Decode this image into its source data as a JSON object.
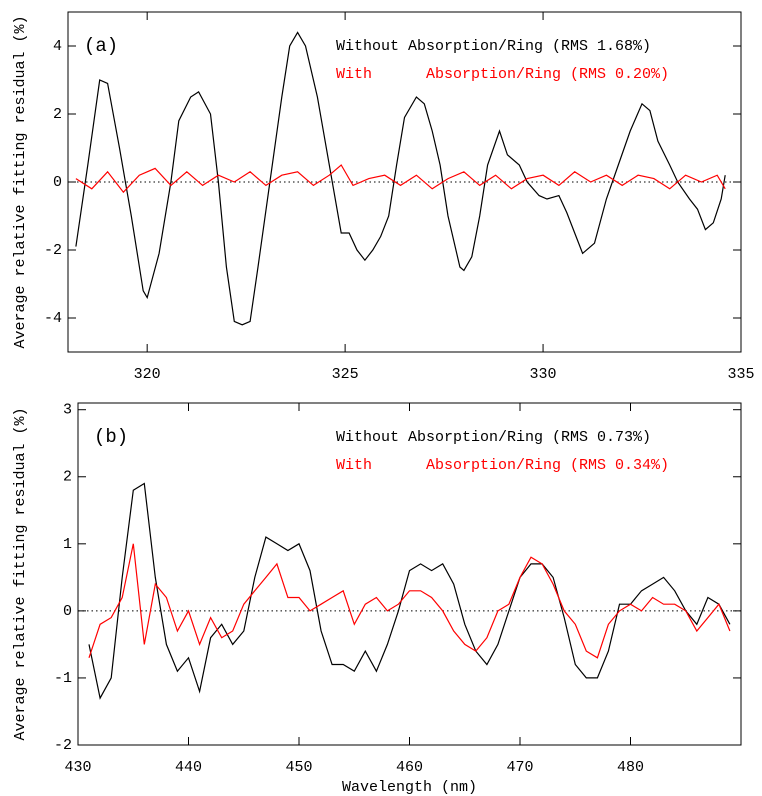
{
  "chart_data": [
    {
      "type": "line",
      "annotation": "(a)",
      "ylabel": "Average relative fitting residual (%)",
      "xlim": [
        318,
        335
      ],
      "xticks": [
        320,
        325,
        330,
        335
      ],
      "ylim": [
        -5,
        5
      ],
      "yticks": [
        -4,
        -2,
        0,
        2,
        4
      ],
      "series": [
        {
          "name": "Without Absorption/Ring (RMS 1.68%)",
          "color": "#000000",
          "x": [
            318.2,
            318.5,
            318.8,
            319.0,
            319.3,
            319.6,
            319.9,
            320.0,
            320.3,
            320.6,
            320.8,
            321.1,
            321.3,
            321.6,
            321.8,
            322.0,
            322.2,
            322.4,
            322.6,
            322.8,
            323.1,
            323.4,
            323.6,
            323.8,
            324.0,
            324.3,
            324.6,
            324.9,
            325.1,
            325.3,
            325.5,
            325.7,
            325.9,
            326.1,
            326.3,
            326.5,
            326.8,
            327.0,
            327.2,
            327.4,
            327.6,
            327.9,
            328.0,
            328.2,
            328.4,
            328.6,
            328.9,
            329.1,
            329.4,
            329.6,
            329.9,
            330.1,
            330.4,
            330.6,
            330.8,
            331.0,
            331.3,
            331.6,
            331.9,
            332.2,
            332.5,
            332.7,
            332.9,
            333.2,
            333.4,
            333.7,
            333.9,
            334.1,
            334.3,
            334.5,
            334.6
          ],
          "values": [
            -1.9,
            0.5,
            3.0,
            2.9,
            1.0,
            -1.0,
            -3.2,
            -3.4,
            -2.1,
            0,
            1.8,
            2.5,
            2.65,
            2.0,
            0,
            -2.5,
            -4.1,
            -4.2,
            -4.1,
            -2.5,
            0,
            2.5,
            4.0,
            4.4,
            4.0,
            2.5,
            0.5,
            -1.5,
            -1.5,
            -2.0,
            -2.3,
            -2.0,
            -1.6,
            -1.0,
            0.5,
            1.9,
            2.5,
            2.3,
            1.5,
            0.5,
            -1.0,
            -2.5,
            -2.6,
            -2.2,
            -1.0,
            0.5,
            1.5,
            0.8,
            0.5,
            0,
            -0.4,
            -0.5,
            -0.4,
            -0.9,
            -1.5,
            -2.1,
            -1.8,
            -0.5,
            0.5,
            1.5,
            2.3,
            2.1,
            1.2,
            0.5,
            0,
            -0.5,
            -0.8,
            -1.4,
            -1.2,
            -0.5,
            0.2
          ]
        },
        {
          "name": "With      Absorption/Ring (RMS 0.20%)",
          "color": "#ff0000",
          "x": [
            318.2,
            318.6,
            319.0,
            319.4,
            319.8,
            320.2,
            320.6,
            321.0,
            321.4,
            321.8,
            322.2,
            322.6,
            323.0,
            323.4,
            323.8,
            324.2,
            324.6,
            324.9,
            325.2,
            325.6,
            326.0,
            326.4,
            326.8,
            327.2,
            327.6,
            328.0,
            328.4,
            328.8,
            329.2,
            329.6,
            330.0,
            330.4,
            330.8,
            331.2,
            331.6,
            332.0,
            332.4,
            332.8,
            333.2,
            333.6,
            334.0,
            334.4,
            334.6
          ],
          "values": [
            0.1,
            -0.2,
            0.3,
            -0.3,
            0.2,
            0.4,
            -0.1,
            0.3,
            -0.1,
            0.2,
            0,
            0.3,
            -0.1,
            0.2,
            0.3,
            -0.1,
            0.2,
            0.5,
            -0.1,
            0.1,
            0.2,
            -0.1,
            0.2,
            -0.2,
            0.1,
            0.3,
            -0.1,
            0.2,
            -0.2,
            0.1,
            0.2,
            -0.1,
            0.3,
            0,
            0.2,
            -0.1,
            0.2,
            0.1,
            -0.2,
            0.2,
            0,
            0.2,
            -0.2
          ]
        }
      ]
    },
    {
      "type": "line",
      "annotation": "(b)",
      "ylabel": "Average relative fitting residual (%)",
      "xlabel": "Wavelength (nm)",
      "xlim": [
        430,
        490
      ],
      "xticks": [
        430,
        440,
        450,
        460,
        470,
        480
      ],
      "ylim": [
        -2,
        3.1
      ],
      "yticks": [
        -2,
        -1,
        0,
        1,
        2,
        3
      ],
      "series": [
        {
          "name": "Without Absorption/Ring (RMS 0.73%)",
          "color": "#000000",
          "x": [
            431,
            432,
            433,
            434,
            435,
            436,
            437,
            438,
            439,
            440,
            441,
            442,
            443,
            444,
            445,
            446,
            447,
            448,
            449,
            450,
            451,
            452,
            453,
            454,
            455,
            456,
            457,
            458,
            459,
            460,
            461,
            462,
            463,
            464,
            465,
            466,
            467,
            468,
            469,
            470,
            471,
            472,
            473,
            474,
            475,
            476,
            477,
            478,
            479,
            480,
            481,
            482,
            483,
            484,
            485,
            486,
            487,
            488,
            489
          ],
          "values": [
            -0.5,
            -1.3,
            -1.0,
            0.5,
            1.8,
            1.9,
            0.5,
            -0.5,
            -0.9,
            -0.7,
            -1.2,
            -0.4,
            -0.2,
            -0.5,
            -0.3,
            0.5,
            1.1,
            1.0,
            0.9,
            1.0,
            0.6,
            -0.3,
            -0.8,
            -0.8,
            -0.9,
            -0.6,
            -0.9,
            -0.5,
            0,
            0.6,
            0.7,
            0.6,
            0.7,
            0.4,
            -0.2,
            -0.6,
            -0.8,
            -0.5,
            0,
            0.5,
            0.7,
            0.7,
            0.5,
            -0.1,
            -0.8,
            -1.0,
            -1.0,
            -0.6,
            0.1,
            0.1,
            0.3,
            0.4,
            0.5,
            0.3,
            0,
            -0.2,
            0.2,
            0.1,
            -0.2
          ]
        },
        {
          "name": "With      Absorption/Ring (RMS 0.34%)",
          "color": "#ff0000",
          "x": [
            431,
            432,
            433,
            434,
            435,
            436,
            437,
            438,
            439,
            440,
            441,
            442,
            443,
            444,
            445,
            446,
            447,
            448,
            449,
            450,
            451,
            452,
            453,
            454,
            455,
            456,
            457,
            458,
            459,
            460,
            461,
            462,
            463,
            464,
            465,
            466,
            467,
            468,
            469,
            470,
            471,
            472,
            473,
            474,
            475,
            476,
            477,
            478,
            479,
            480,
            481,
            482,
            483,
            484,
            485,
            486,
            487,
            488,
            489
          ],
          "values": [
            -0.7,
            -0.2,
            -0.1,
            0.2,
            1.0,
            -0.5,
            0.4,
            0.2,
            -0.3,
            0,
            -0.5,
            -0.1,
            -0.4,
            -0.3,
            0.1,
            0.3,
            0.5,
            0.7,
            0.2,
            0.2,
            0,
            0.1,
            0.2,
            0.3,
            -0.2,
            0.1,
            0.2,
            0,
            0.1,
            0.3,
            0.3,
            0.2,
            0,
            -0.3,
            -0.5,
            -0.6,
            -0.4,
            0,
            0.1,
            0.5,
            0.8,
            0.7,
            0.4,
            0,
            -0.2,
            -0.6,
            -0.7,
            -0.2,
            0,
            0.1,
            0,
            0.2,
            0.1,
            0.1,
            0,
            -0.3,
            -0.1,
            0.1,
            -0.3
          ]
        }
      ]
    }
  ]
}
